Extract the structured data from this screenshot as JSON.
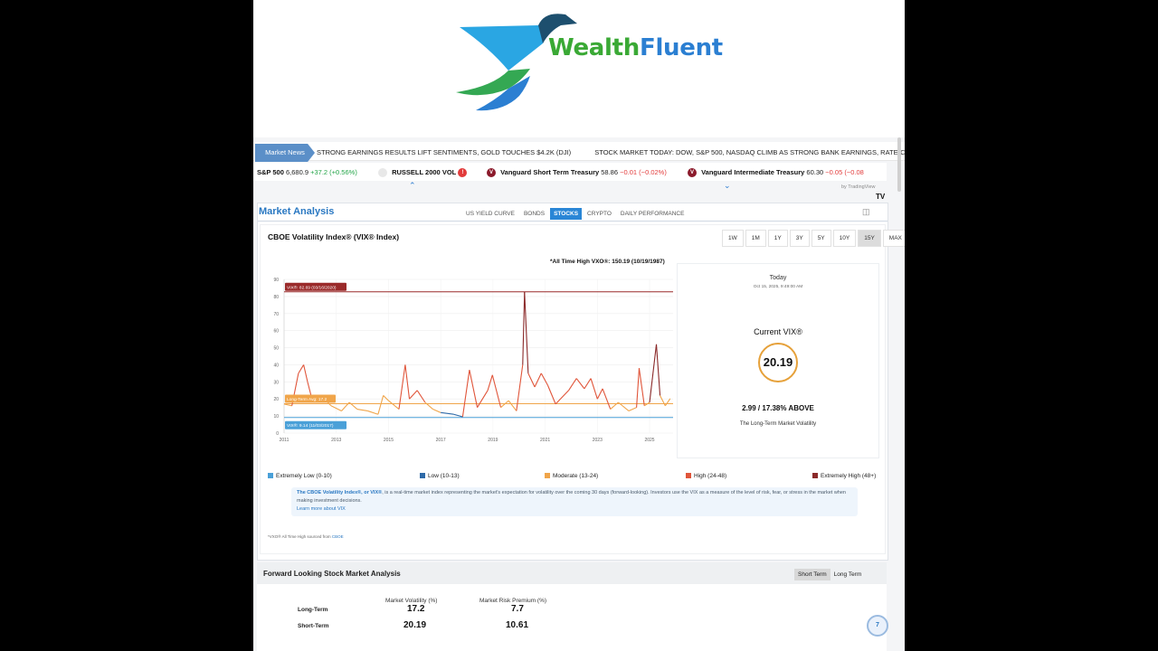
{
  "brand": {
    "part1": "Wealth",
    "part2": "Fluent"
  },
  "news": {
    "tag": "Market News",
    "items": [
      "STRONG EARNINGS RESULTS LIFT SENTIMENTS, GOLD TOUCHES $4.2K (DJI)",
      "STOCK MARKET TODAY: DOW, S&P 500, NASDAQ CLIMB AS STRONG BANK EARNINGS, RATE-CUT HOPES S"
    ]
  },
  "quotes": [
    {
      "name": "S&P 500",
      "price": "6,680.9",
      "change": "+37.2 (+0.56%)",
      "direction": "up"
    },
    {
      "name": "RUSSELL 2000 VOL",
      "price": "",
      "change": "",
      "direction": ""
    },
    {
      "name": "Vanguard Short Term Treasury",
      "price": "58.86",
      "change": "−0.01 (−0.02%)",
      "direction": "down"
    },
    {
      "name": "Vanguard Intermediate Treasury",
      "price": "60.30",
      "change": "−0.05 (−0.08",
      "direction": "down"
    }
  ],
  "tv_credit": "by TradingView",
  "market_analysis": {
    "title": "Market Analysis",
    "tabs": [
      "US YIELD CURVE",
      "BONDS",
      "STOCKS",
      "CRYPTO",
      "DAILY PERFORMANCE"
    ],
    "active_tab": "STOCKS"
  },
  "chart_title": "CBOE Volatility Index® (VIX® Index)",
  "ranges": [
    "1W",
    "1M",
    "1Y",
    "3Y",
    "5Y",
    "10Y",
    "15Y",
    "MAX"
  ],
  "active_range": "15Y",
  "ath_label": "*All Time High VXO®: 150.19 (10/19/1987)",
  "chart_data": {
    "type": "line",
    "title": "CBOE Volatility Index® (VIX® Index)",
    "xlabel": "",
    "ylabel": "",
    "x_ticks": [
      "2011",
      "2013",
      "2015",
      "2017",
      "2019",
      "2021",
      "2023",
      "2025"
    ],
    "y_ticks": [
      0,
      10,
      20,
      30,
      40,
      50,
      60,
      70,
      80,
      90
    ],
    "ylim": [
      0,
      90
    ],
    "xlim": [
      2011,
      2025.9
    ],
    "grid": true,
    "annotations": [
      {
        "label": "VIX®: 82.69 (03/16/2020)",
        "value": 82.69
      },
      {
        "label": "Long-Term Avg: 17.2",
        "value": 17.2
      },
      {
        "label": "VIX®: 9.14 (11/03/2017)",
        "value": 9.14
      }
    ],
    "series": [
      {
        "values": [
          [
            2011.0,
            17
          ],
          [
            2011.3,
            16
          ],
          [
            2011.55,
            35
          ],
          [
            2011.75,
            40
          ],
          [
            2011.9,
            30
          ],
          [
            2012.1,
            18
          ],
          [
            2012.4,
            22
          ],
          [
            2012.8,
            16
          ],
          [
            2013.2,
            13
          ],
          [
            2013.5,
            18
          ],
          [
            2013.8,
            14
          ],
          [
            2014.2,
            13
          ],
          [
            2014.6,
            11
          ],
          [
            2014.8,
            22
          ],
          [
            2015.0,
            19
          ],
          [
            2015.4,
            14
          ],
          [
            2015.64,
            40
          ],
          [
            2015.8,
            20
          ],
          [
            2016.1,
            25
          ],
          [
            2016.4,
            18
          ],
          [
            2016.7,
            14
          ],
          [
            2017.0,
            12
          ],
          [
            2017.5,
            11
          ],
          [
            2017.84,
            9.5
          ],
          [
            2018.1,
            37
          ],
          [
            2018.4,
            15
          ],
          [
            2018.8,
            25
          ],
          [
            2018.98,
            34
          ],
          [
            2019.3,
            15
          ],
          [
            2019.6,
            19
          ],
          [
            2019.9,
            13
          ],
          [
            2020.14,
            40
          ],
          [
            2020.21,
            82.69
          ],
          [
            2020.35,
            35
          ],
          [
            2020.6,
            27
          ],
          [
            2020.85,
            35
          ],
          [
            2021.1,
            28
          ],
          [
            2021.4,
            17
          ],
          [
            2021.9,
            25
          ],
          [
            2022.2,
            32
          ],
          [
            2022.5,
            26
          ],
          [
            2022.75,
            32
          ],
          [
            2023.0,
            20
          ],
          [
            2023.2,
            26
          ],
          [
            2023.5,
            14
          ],
          [
            2023.8,
            18
          ],
          [
            2024.2,
            13
          ],
          [
            2024.5,
            15
          ],
          [
            2024.6,
            38
          ],
          [
            2024.8,
            16
          ],
          [
            2025.0,
            18
          ],
          [
            2025.26,
            52
          ],
          [
            2025.4,
            22
          ],
          [
            2025.6,
            16
          ],
          [
            2025.79,
            20.19
          ]
        ]
      }
    ]
  },
  "side": {
    "today": "Today",
    "date": "Oct 15, 2025, 9:49:00 AM",
    "current_label": "Current VIX®",
    "current_value": "20.19",
    "above": "2.99 / 17.38% ABOVE",
    "note": "The Long-Term Market Volatility"
  },
  "legend": [
    {
      "label": "Extremely Low (0-10)",
      "color": "#4aa0d8"
    },
    {
      "label": "Low (10-13)",
      "color": "#2e6aa8"
    },
    {
      "label": "Moderate (13-24)",
      "color": "#f0a54a"
    },
    {
      "label": "High (24-48)",
      "color": "#e0553a"
    },
    {
      "label": "Extremely High (48+)",
      "color": "#8b2a2a"
    }
  ],
  "description": {
    "term": "The CBOE Volatility Index®, or VIX®",
    "text": ", is a real-time market index representing the market's expectation for volatility over the coming 30 days (forward-looking). Investors use the VIX as a measure of the level of risk, fear, or stress in the market when making investment decisions.",
    "learn": "Learn more about VIX"
  },
  "source": {
    "text": "*VXO® All Time High sourced from",
    "link": "CBOE"
  },
  "forward": {
    "title": "Forward Looking Stock Market Analysis",
    "toggle": [
      "Short Term",
      "Long Term"
    ],
    "columns": [
      "Market Volatility (%)",
      "Market Risk Premium (%)"
    ],
    "rows": [
      {
        "label": "Long-Term",
        "volatility": "17.2",
        "premium": "7.7"
      },
      {
        "label": "Short-Term",
        "volatility": "20.19",
        "premium": "10.61"
      }
    ]
  }
}
